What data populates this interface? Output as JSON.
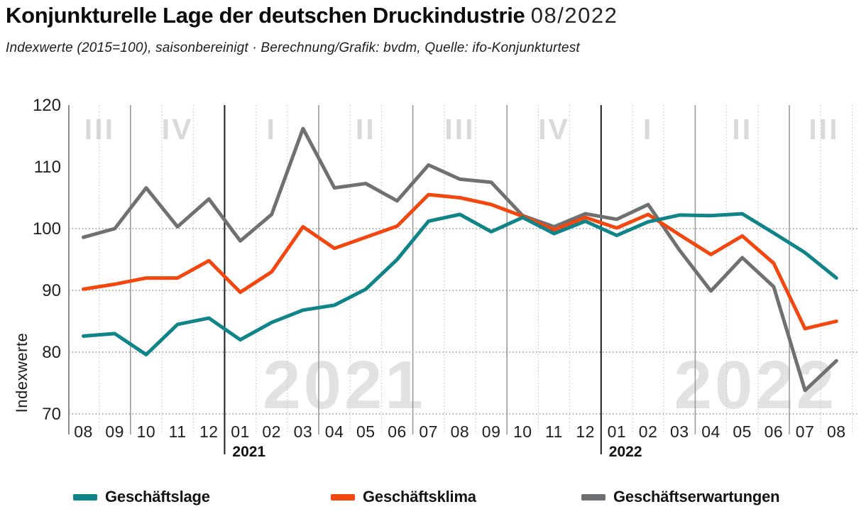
{
  "header": {
    "title": "Konjunkturelle Lage der deutschen Druckindustrie",
    "period": "08/2022",
    "subtitle": "Indexwerte (2015=100), saisonbereinigt · Berechnung/Grafik: bvdm, Quelle: ifo-Konjunkturtest"
  },
  "chart_data": {
    "type": "line",
    "title": "Konjunkturelle Lage der deutschen Druckindustrie 08/2022",
    "ylabel": "Indexwerte",
    "xlabel": "",
    "ylim": [
      70,
      120
    ],
    "yticks": [
      120,
      110,
      100,
      90,
      80,
      70
    ],
    "gridlines_at": [
      100,
      90,
      80,
      70
    ],
    "grid": "dotted",
    "legend_position": "bottom",
    "x_labels": [
      "08",
      "09",
      "10",
      "11",
      "12",
      "01",
      "02",
      "03",
      "04",
      "05",
      "06",
      "07",
      "08",
      "09",
      "10",
      "11",
      "12",
      "01",
      "02",
      "03",
      "04",
      "05",
      "06",
      "07",
      "08"
    ],
    "quarter_labels": [
      "III",
      "IV",
      "I",
      "II",
      "III",
      "IV",
      "I",
      "II",
      "III"
    ],
    "quarter_boundaries_after_index": [
      1,
      4,
      7,
      10,
      13,
      16,
      19,
      22
    ],
    "year_boundaries_after_index": [
      4,
      16
    ],
    "year_labels": [
      {
        "text": "2021",
        "after_index": 4
      },
      {
        "text": "2022",
        "after_index": 16
      }
    ],
    "watermarks": [
      "2021",
      "2022"
    ],
    "series": [
      {
        "name": "Geschäftslage",
        "color": "#0f858a",
        "values": [
          82.6,
          83.0,
          79.6,
          84.5,
          85.5,
          82.0,
          84.8,
          86.8,
          87.6,
          90.2,
          95.0,
          101.2,
          102.3,
          99.5,
          101.8,
          99.2,
          101.2,
          98.9,
          101.1,
          102.2,
          102.1,
          102.4,
          99.3,
          96.1,
          92.0
        ]
      },
      {
        "name": "Geschäftsklima",
        "color": "#f3470f",
        "values": [
          90.2,
          91.0,
          92.0,
          92.0,
          94.8,
          89.7,
          93.0,
          100.3,
          96.8,
          98.6,
          100.4,
          105.5,
          105.0,
          103.9,
          102.0,
          99.8,
          101.8,
          100.1,
          102.3,
          99.0,
          95.8,
          98.8,
          94.4,
          83.8,
          85.0
        ]
      },
      {
        "name": "Geschäftserwartungen",
        "color": "#6f7072",
        "values": [
          98.6,
          100.0,
          106.6,
          100.3,
          104.8,
          98.0,
          102.3,
          116.2,
          106.6,
          107.3,
          104.5,
          110.3,
          108.0,
          107.5,
          102.1,
          100.3,
          102.4,
          101.5,
          103.9,
          96.5,
          89.9,
          95.3,
          90.6,
          73.8,
          78.6
        ]
      }
    ]
  },
  "legend": {
    "items": [
      {
        "label": "Geschäftslage",
        "color": "#0f858a"
      },
      {
        "label": "Geschäftsklima",
        "color": "#f3470f"
      },
      {
        "label": "Geschäftserwartungen",
        "color": "#6f7072"
      }
    ]
  },
  "colors": {
    "accent_teal": "#0f858a",
    "accent_orange": "#f3470f",
    "accent_gray": "#6f7072",
    "grid": "#8f8f8f",
    "axis": "#8a8a8a",
    "quarter_line": "#9b9b9b",
    "year_line": "#1c1c1c",
    "month_dot_line": "#c8c8c8",
    "quarter_label": "#d9d9d9",
    "watermark": "#e2e2e2",
    "text": "#1f1f1f"
  }
}
